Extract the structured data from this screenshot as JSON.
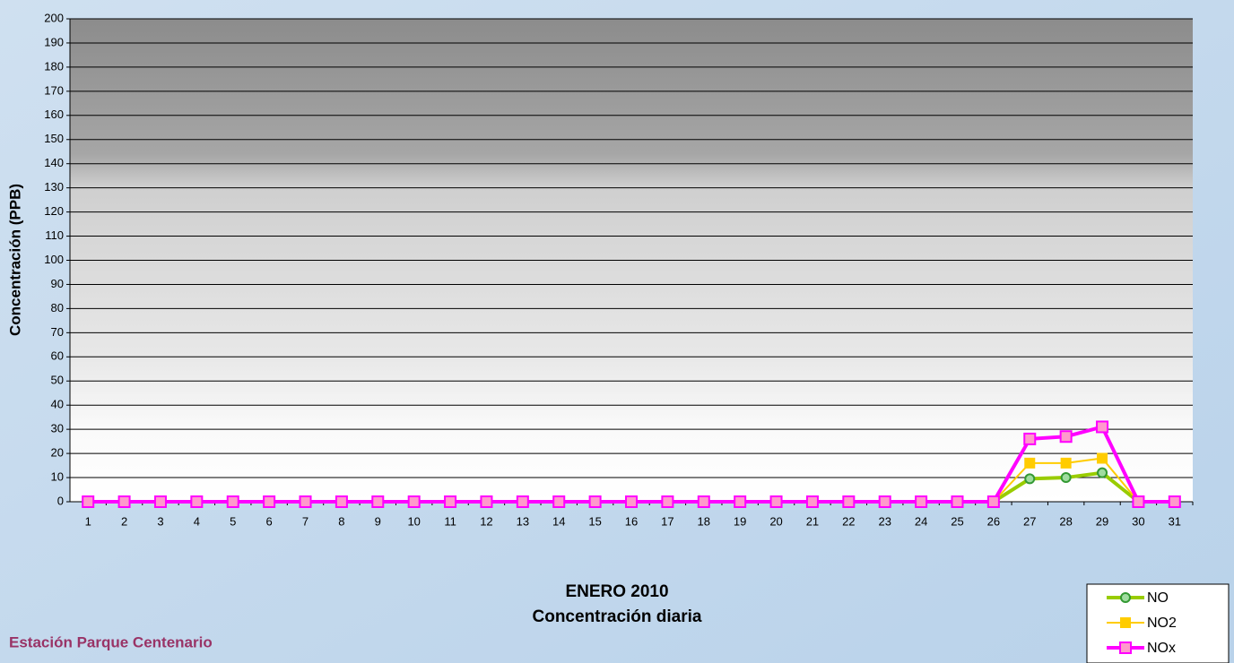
{
  "chart_data": {
    "type": "line",
    "title": "ENERO 2010",
    "subtitle": "Concentración diaria",
    "y_label": "Concentración  (PPB)",
    "annotation": "Estación Parque Centenario",
    "categories": [
      "1",
      "2",
      "3",
      "4",
      "5",
      "6",
      "7",
      "8",
      "9",
      "10",
      "11",
      "12",
      "13",
      "14",
      "15",
      "16",
      "17",
      "18",
      "19",
      "20",
      "21",
      "22",
      "23",
      "24",
      "25",
      "26",
      "27",
      "28",
      "29",
      "30",
      "31"
    ],
    "series": [
      {
        "name": "NO",
        "color": "#99cc00",
        "marker": "circle",
        "values": [
          0,
          0,
          0,
          0,
          0,
          0,
          0,
          0,
          0,
          0,
          0,
          0,
          0,
          0,
          0,
          0,
          0,
          0,
          0,
          0,
          0,
          0,
          0,
          0,
          0,
          0,
          9.5,
          10,
          12,
          0,
          0
        ]
      },
      {
        "name": "NO2",
        "color": "#ffcc00",
        "marker": "square",
        "values": [
          0,
          0,
          0,
          0,
          0,
          0,
          0,
          0,
          0,
          0,
          0,
          0,
          0,
          0,
          0,
          0,
          0,
          0,
          0,
          0,
          0,
          0,
          0,
          0,
          0,
          0,
          16,
          16,
          18,
          0,
          0
        ]
      },
      {
        "name": "NOx",
        "color": "#ff00ff",
        "marker": "square",
        "values": [
          0,
          0,
          0,
          0,
          0,
          0,
          0,
          0,
          0,
          0,
          0,
          0,
          0,
          0,
          0,
          0,
          0,
          0,
          0,
          0,
          0,
          0,
          0,
          0,
          0,
          0,
          26,
          27,
          31,
          0,
          0
        ]
      }
    ],
    "ylim": [
      0,
      200
    ],
    "yticks": [
      0,
      10,
      20,
      30,
      40,
      50,
      60,
      70,
      80,
      90,
      100,
      110,
      120,
      130,
      140,
      150,
      160,
      170,
      180,
      190,
      200
    ],
    "grid": true,
    "legend": "bottom-right"
  }
}
